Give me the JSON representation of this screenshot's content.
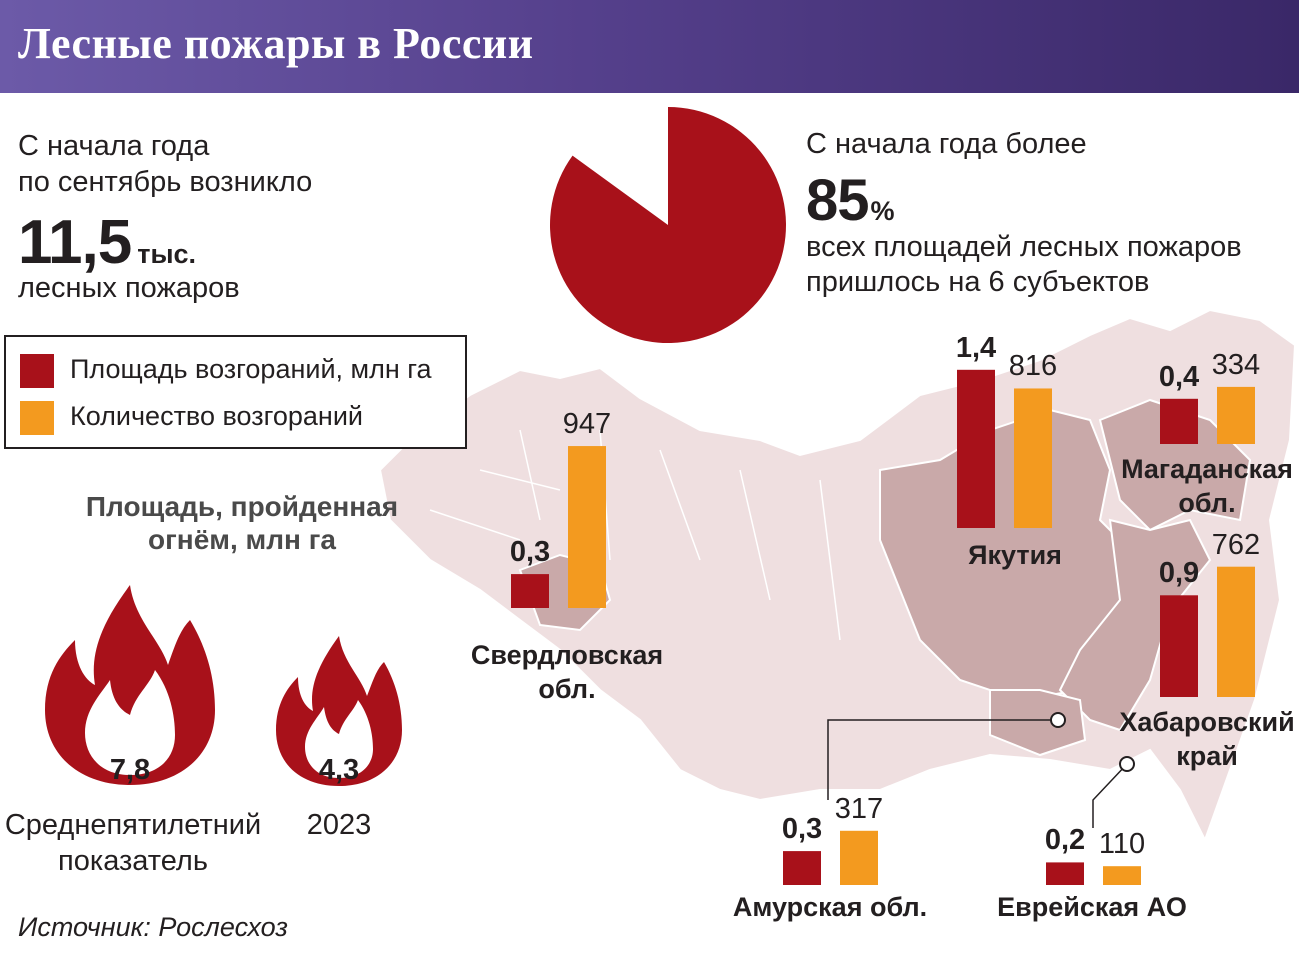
{
  "title": "Лесные пожары в России",
  "intro": {
    "line1": "С начала года",
    "line2": "по сентябрь возникло",
    "big_number": "11,5",
    "big_unit": "тыс.",
    "line3": "лесных пожаров"
  },
  "share": {
    "line1": "С начала года более",
    "value": "85",
    "unit": "%",
    "line2": "всех площадей лесных пожаров",
    "line3": "пришлось на 6 субъектов",
    "fraction": 0.85
  },
  "legend": {
    "area": "Площадь возгораний, млн га",
    "count": "Количество возгораний"
  },
  "flames": {
    "title": "Площадь, пройденная огнём, млн га",
    "avg_value": "7,8",
    "avg_label_1": "Среднепятилетний",
    "avg_label_2": "показатель",
    "year_value": "4,3",
    "year_label": "2023"
  },
  "source": "Источник: Рослесхоз",
  "colors": {
    "area": "#a8111a",
    "count": "#f39a1f",
    "header": "#5a4795",
    "map": "#efdfe0",
    "highlight": "#c9a9a9"
  },
  "chart_data": {
    "type": "bar",
    "categories": [
      "Свердловская обл.",
      "Якутия",
      "Магаданская обл.",
      "Хабаровский край",
      "Амурская обл.",
      "Еврейская АО"
    ],
    "series": [
      {
        "name": "Площадь возгораний, млн га",
        "values": [
          0.3,
          1.4,
          0.4,
          0.9,
          0.3,
          0.2
        ],
        "labels": [
          "0,3",
          "1,4",
          "0,4",
          "0,9",
          "0,3",
          "0,2"
        ]
      },
      {
        "name": "Количество возгораний",
        "values": [
          947,
          816,
          334,
          762,
          317,
          110
        ],
        "labels": [
          "947",
          "816",
          "334",
          "762",
          "317",
          "110"
        ]
      }
    ],
    "regions": [
      {
        "name1": "Свердловская",
        "name2": "обл."
      },
      {
        "name1": "Якутия",
        "name2": ""
      },
      {
        "name1": "Магаданская",
        "name2": "обл."
      },
      {
        "name1": "Хабаровский",
        "name2": "край"
      },
      {
        "name1": "Амурская обл.",
        "name2": ""
      },
      {
        "name1": "Еврейская АО",
        "name2": ""
      }
    ]
  }
}
